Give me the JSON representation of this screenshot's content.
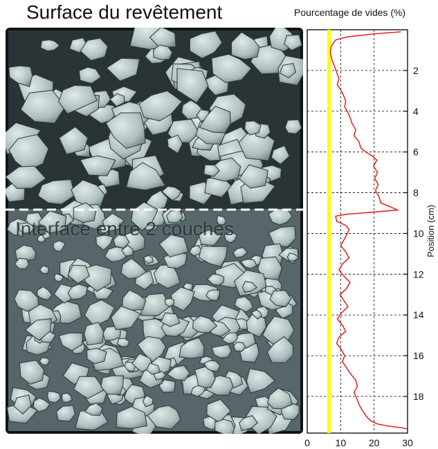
{
  "image_title": "Surface du revêtement",
  "interface_label": "Interface entre 2 couches",
  "colors": {
    "profile_line": "#e81010",
    "reference_line": "#ffff00",
    "grid": "#000000",
    "scan_background": "#101418",
    "aggregate_fill": "#b8c6c6"
  },
  "chart_data": {
    "type": "line",
    "title": "Pourcentage de vides (%)",
    "xlabel": "Pourcentage de vides (%)",
    "ylabel": "Position (cm)",
    "xlim": [
      0,
      30
    ],
    "ylim": [
      0,
      19.8
    ],
    "y_inverted": true,
    "x_ticks": [
      0,
      10,
      20,
      30
    ],
    "y_ticks": [
      2,
      4,
      6,
      8,
      10,
      12,
      14,
      16,
      18
    ],
    "grid": true,
    "reference_line": {
      "x": 6.5
    },
    "series": [
      {
        "points": [
          [
            28.0,
            0.1
          ],
          [
            20.0,
            0.2
          ],
          [
            12.0,
            0.35
          ],
          [
            8.5,
            0.5
          ],
          [
            7.2,
            0.8
          ],
          [
            6.9,
            1.1
          ],
          [
            7.4,
            1.5
          ],
          [
            8.2,
            1.8
          ],
          [
            8.8,
            2.1
          ],
          [
            9.5,
            2.4
          ],
          [
            9.0,
            2.7
          ],
          [
            10.2,
            3.0
          ],
          [
            10.8,
            3.2
          ],
          [
            11.5,
            3.5
          ],
          [
            11.2,
            3.8
          ],
          [
            12.0,
            4.0
          ],
          [
            12.8,
            4.3
          ],
          [
            13.4,
            4.6
          ],
          [
            14.5,
            4.9
          ],
          [
            14.0,
            5.2
          ],
          [
            15.5,
            5.5
          ],
          [
            16.0,
            5.8
          ],
          [
            17.5,
            6.0
          ],
          [
            19.5,
            6.2
          ],
          [
            20.8,
            6.4
          ],
          [
            19.8,
            6.7
          ],
          [
            21.0,
            7.0
          ],
          [
            20.2,
            7.3
          ],
          [
            21.2,
            7.6
          ],
          [
            20.4,
            7.9
          ],
          [
            21.5,
            8.2
          ],
          [
            22.0,
            8.5
          ],
          [
            25.0,
            8.7
          ],
          [
            27.0,
            8.85
          ],
          [
            20.0,
            8.95
          ],
          [
            12.0,
            9.05
          ],
          [
            8.5,
            9.15
          ],
          [
            8.8,
            9.4
          ],
          [
            11.5,
            9.6
          ],
          [
            12.5,
            9.8
          ],
          [
            12.0,
            10.0
          ],
          [
            11.0,
            10.3
          ],
          [
            10.0,
            10.6
          ],
          [
            11.5,
            10.9
          ],
          [
            12.5,
            11.2
          ],
          [
            10.5,
            11.5
          ],
          [
            9.5,
            11.8
          ],
          [
            11.0,
            12.1
          ],
          [
            12.8,
            12.4
          ],
          [
            11.8,
            12.7
          ],
          [
            9.8,
            13.0
          ],
          [
            11.0,
            13.3
          ],
          [
            12.2,
            13.6
          ],
          [
            10.2,
            13.9
          ],
          [
            9.0,
            14.2
          ],
          [
            10.5,
            14.5
          ],
          [
            11.5,
            14.8
          ],
          [
            9.5,
            15.1
          ],
          [
            8.8,
            15.4
          ],
          [
            10.2,
            15.7
          ],
          [
            11.2,
            16.0
          ],
          [
            10.5,
            16.3
          ],
          [
            11.8,
            16.6
          ],
          [
            13.0,
            16.9
          ],
          [
            14.5,
            17.2
          ],
          [
            15.0,
            17.5
          ],
          [
            14.0,
            17.8
          ],
          [
            14.8,
            18.1
          ],
          [
            15.5,
            18.4
          ],
          [
            16.5,
            18.7
          ],
          [
            17.8,
            19.0
          ],
          [
            19.0,
            19.2
          ],
          [
            21.0,
            19.35
          ],
          [
            24.0,
            19.45
          ],
          [
            28.5,
            19.55
          ],
          [
            30.0,
            19.6
          ]
        ]
      }
    ]
  }
}
